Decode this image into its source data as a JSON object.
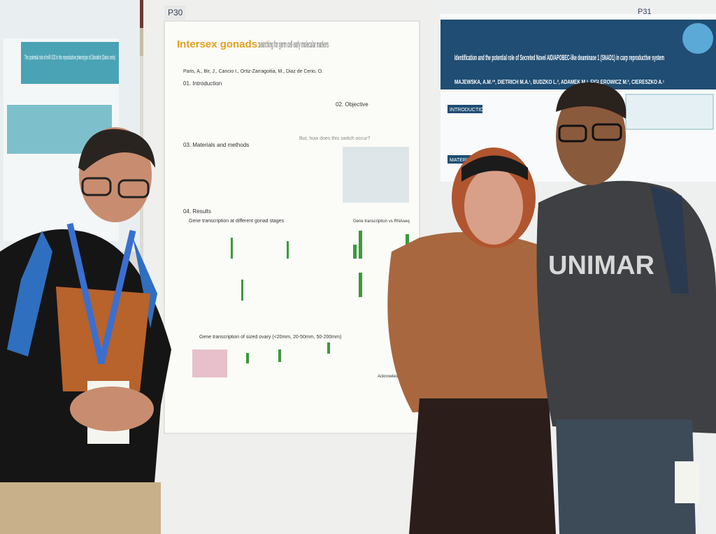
{
  "left_poster": {
    "title": "The potential role of miR-202 in the reproductive phenotype of Zebrafish (Danio rerio)"
  },
  "middle_poster": {
    "number": "P30",
    "title_highlight": "Intersex gonads:",
    "title_rest": "searching for germ cell early molecular markers",
    "authors": "Paris, A., Bir, J., Cancio I., Ortiz-Zarragoitia, M., Diaz de Cerio, O.",
    "sections": [
      "01. Introduction",
      "02. Objective",
      "03. Materials and methods",
      "04. Results"
    ],
    "subheadings": [
      "Gene transcription at different gonad stages",
      "Gene transcription vs RNAseq",
      "Gene transcription of sized ovary (<20mm, 20-50mm, 50-200mm)"
    ],
    "question": "But, how does this switch occur?",
    "acknowledgements": "Acknowledgements"
  },
  "right_poster": {
    "number": "P31",
    "title": "Identification and the potential role of Secreted Novel AID/APOBEC-like deaminase 1 (SNAD1) in carp reproductive system",
    "authors": "MAJEWSKA, A.M.¹*, DIETRICH M.A.¹, BUDZKO L.², ADAMEK M.³, FIGLEROWICZ M.², CIERESZKO A.¹",
    "sections": [
      "INTRODUCTION",
      "MATERIALS"
    ]
  },
  "shirt_text": "UNIMAR"
}
